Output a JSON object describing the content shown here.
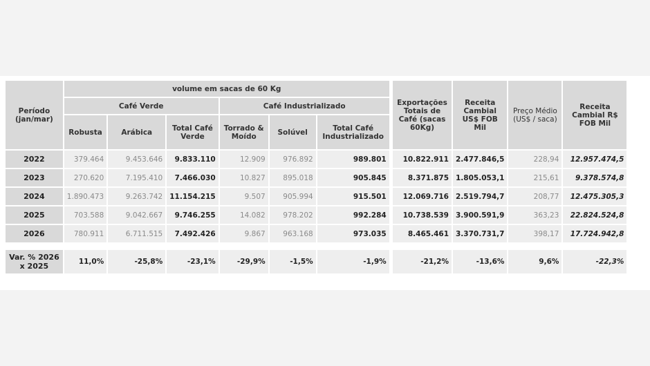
{
  "left_table": {
    "periodo_header": "Período (jan/mar)",
    "volume_header": "volume em sacas de 60 Kg",
    "cafe_verde_header": "Café Verde",
    "cafe_industrializado_header": "Café Industrializado",
    "columns": [
      "Robusta",
      "Arábica",
      "Total Café Verde",
      "Torrado & Moído",
      "Solúvel",
      "Total Café Industrializado"
    ],
    "rows": [
      {
        "year": "2022",
        "values": [
          "379.464",
          "9.453.646",
          "9.833.110",
          "12.909",
          "976.892",
          "989.801"
        ]
      },
      {
        "year": "2023",
        "values": [
          "270.620",
          "7.195.410",
          "7.466.030",
          "10.827",
          "895.018",
          "905.845"
        ]
      },
      {
        "year": "2024",
        "values": [
          "1.890.473",
          "9.263.742",
          "11.154.215",
          "9.507",
          "905.994",
          "915.501"
        ]
      },
      {
        "year": "2025",
        "values": [
          "703.588",
          "9.042.667",
          "9.746.255",
          "14.082",
          "978.202",
          "992.284"
        ]
      },
      {
        "year": "2026",
        "values": [
          "780.911",
          "6.711.515",
          "7.492.426",
          "9.867",
          "963.168",
          "973.035"
        ]
      }
    ],
    "var_label": "Var. % 2026 x 2025",
    "var_values": [
      "11,0%",
      "-25,8%",
      "-23,1%",
      "-29,9%",
      "-1,5%",
      "-1,9%"
    ]
  },
  "right_table": {
    "columns": [
      "Exportações Totais de Café (sacas 60Kg)",
      "Receita Cambial US$ FOB Mil",
      "Preço Médio (US$ / saca)",
      "Receita Cambial R$ FOB Mil"
    ],
    "rows": [
      [
        "10.822.911",
        "2.477.846,5",
        "228,94",
        "12.957.474,5"
      ],
      [
        "8.371.875",
        "1.805.053,1",
        "215,61",
        "9.378.574,8"
      ],
      [
        "12.069.716",
        "2.519.794,7",
        "208,77",
        "12.475.305,3"
      ],
      [
        "10.738.539",
        "3.900.591,9",
        "363,23",
        "22.824.524,8"
      ],
      [
        "8.465.461",
        "3.370.731,7",
        "398,17",
        "17.724.942,8"
      ]
    ],
    "var_values": [
      "-21,2%",
      "-13,6%",
      "9,6%",
      "-22,3%"
    ]
  }
}
